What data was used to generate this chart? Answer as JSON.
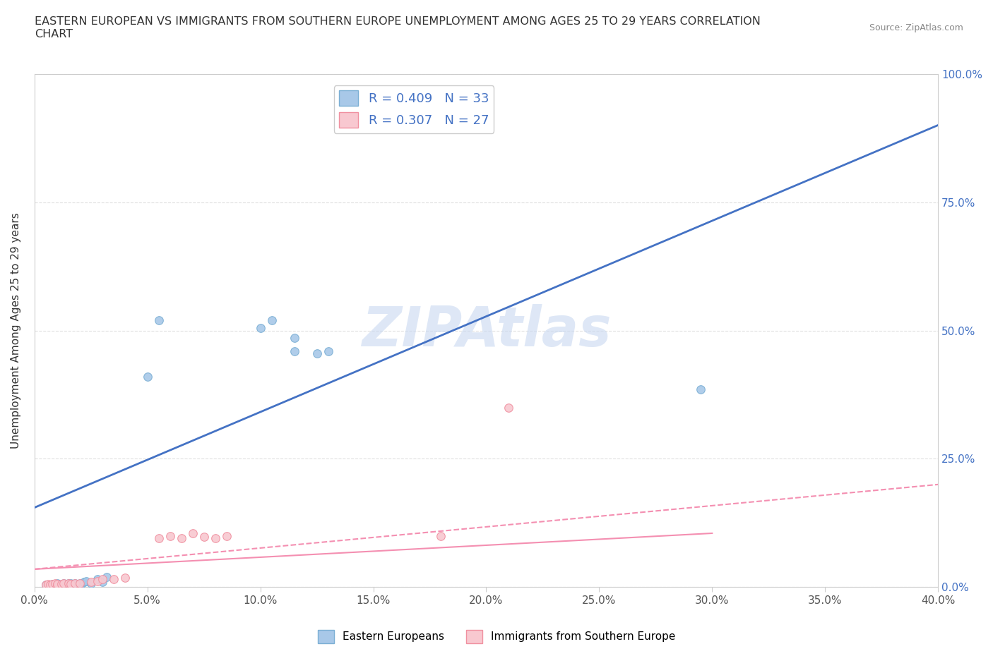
{
  "title": "EASTERN EUROPEAN VS IMMIGRANTS FROM SOUTHERN EUROPE UNEMPLOYMENT AMONG AGES 25 TO 29 YEARS CORRELATION\nCHART",
  "source": "Source: ZipAtlas.com",
  "ylabel": "Unemployment Among Ages 25 to 29 years",
  "xlabel": "",
  "xlim": [
    0.0,
    0.4
  ],
  "ylim": [
    0.0,
    1.0
  ],
  "xtick_vals": [
    0.0,
    0.05,
    0.1,
    0.15,
    0.2,
    0.25,
    0.3,
    0.35,
    0.4
  ],
  "xtick_labels": [
    "0.0%",
    "5.0%",
    "10.0%",
    "15.0%",
    "20.0%",
    "25.0%",
    "30.0%",
    "35.0%",
    "40.0%"
  ],
  "ytick_vals": [
    0.0,
    0.25,
    0.5,
    0.75,
    1.0
  ],
  "ytick_labels_right": [
    "0.0%",
    "25.0%",
    "50.0%",
    "75.0%",
    "100.0%"
  ],
  "blue_scatter_color": "#a8c8e8",
  "blue_edge_color": "#7bafd4",
  "pink_scatter_color": "#f8c8d0",
  "pink_edge_color": "#f090a0",
  "line_blue_color": "#4472c4",
  "line_pink_color": "#f48fb1",
  "R_blue": 0.409,
  "N_blue": 33,
  "R_pink": 0.307,
  "N_pink": 27,
  "watermark": "ZIPAtlas",
  "watermark_color": "#c8d8f0",
  "blue_line_x0": 0.0,
  "blue_line_y0": 0.155,
  "blue_line_x1": 0.4,
  "blue_line_y1": 0.9,
  "pink_line_x0": 0.0,
  "pink_line_y0": 0.035,
  "pink_line_x1": 0.4,
  "pink_line_y1": 0.2,
  "blue_scatter_x": [
    0.005,
    0.007,
    0.008,
    0.01,
    0.01,
    0.01,
    0.012,
    0.013,
    0.013,
    0.014,
    0.015,
    0.015,
    0.016,
    0.017,
    0.018,
    0.018,
    0.02,
    0.021,
    0.022,
    0.023,
    0.025,
    0.028,
    0.03,
    0.032,
    0.05,
    0.055,
    0.1,
    0.105,
    0.115,
    0.115,
    0.125,
    0.13,
    0.295
  ],
  "blue_scatter_y": [
    0.005,
    0.005,
    0.006,
    0.005,
    0.006,
    0.008,
    0.005,
    0.006,
    0.007,
    0.005,
    0.006,
    0.007,
    0.008,
    0.006,
    0.006,
    0.007,
    0.007,
    0.008,
    0.01,
    0.012,
    0.008,
    0.015,
    0.01,
    0.02,
    0.41,
    0.52,
    0.505,
    0.52,
    0.46,
    0.485,
    0.455,
    0.46,
    0.385
  ],
  "pink_scatter_x": [
    0.005,
    0.006,
    0.007,
    0.008,
    0.009,
    0.01,
    0.01,
    0.012,
    0.013,
    0.015,
    0.016,
    0.018,
    0.02,
    0.025,
    0.028,
    0.03,
    0.035,
    0.04,
    0.055,
    0.06,
    0.065,
    0.07,
    0.075,
    0.08,
    0.085,
    0.18,
    0.21
  ],
  "pink_scatter_y": [
    0.005,
    0.006,
    0.005,
    0.006,
    0.007,
    0.005,
    0.006,
    0.006,
    0.007,
    0.008,
    0.006,
    0.007,
    0.008,
    0.01,
    0.012,
    0.015,
    0.016,
    0.018,
    0.095,
    0.1,
    0.095,
    0.105,
    0.098,
    0.095,
    0.1,
    0.1,
    0.35
  ],
  "background_color": "#ffffff",
  "grid_color": "#e0e0e0"
}
